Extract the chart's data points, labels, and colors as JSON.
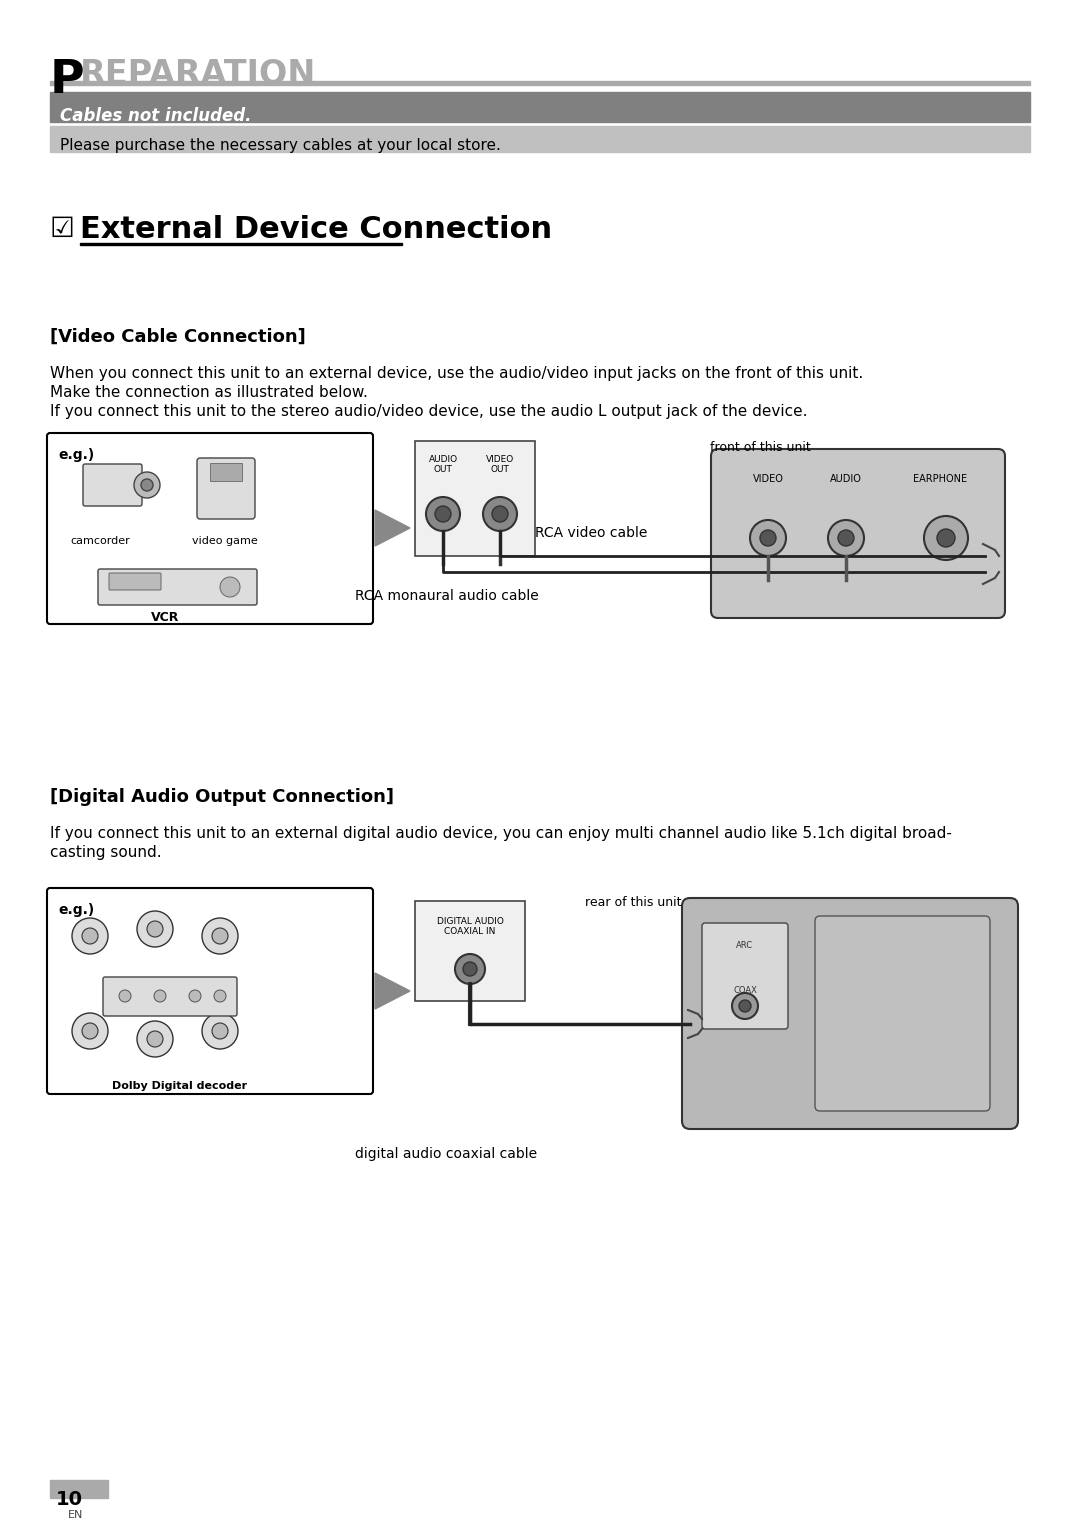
{
  "page_bg": "#ffffff",
  "title_P": "P",
  "title_REST": "REPARATION",
  "title_line_color": "#aaaaaa",
  "dark_banner_color": "#808080",
  "light_banner_color": "#bbbbbb",
  "cables_text": "Cables not included.",
  "purchase_text": "Please purchase the necessary cables at your local store.",
  "section_symbol": "☑",
  "section_title_text": "External Device Connection",
  "video_heading": "[Video Cable Connection]",
  "video_body_1": "When you connect this unit to an external device, use the audio/video input jacks on the front of this unit.",
  "video_body_2": "Make the connection as illustrated below.",
  "video_body_3": "If you connect this unit to the stereo audio/video device, use the audio L output jack of the device.",
  "eg_text": "e.g.)",
  "camcorder": "camcorder",
  "video_game": "video game",
  "vcr": "VCR",
  "audio_out": "AUDIO\nOUT",
  "video_out": "VIDEO\nOUT",
  "rca_video": "RCA video cable",
  "rca_mono": "RCA monaural audio cable",
  "front_unit": "front of this unit",
  "VIDEO": "VIDEO",
  "AUDIO": "AUDIO",
  "EARPHONE": "EARPHONE",
  "digital_heading": "[Digital Audio Output Connection]",
  "digital_body_1": "If you connect this unit to an external digital audio device, you can enjoy multi channel audio like 5.1ch digital broad-",
  "digital_body_2": "casting sound.",
  "dolby": "Dolby Digital decoder",
  "dig_coaxial": "DIGITAL AUDIO\nCOAXIAL IN",
  "dig_cable": "digital audio coaxial cable",
  "rear_unit": "rear of this unit",
  "page_num": "10",
  "page_lang": "EN"
}
